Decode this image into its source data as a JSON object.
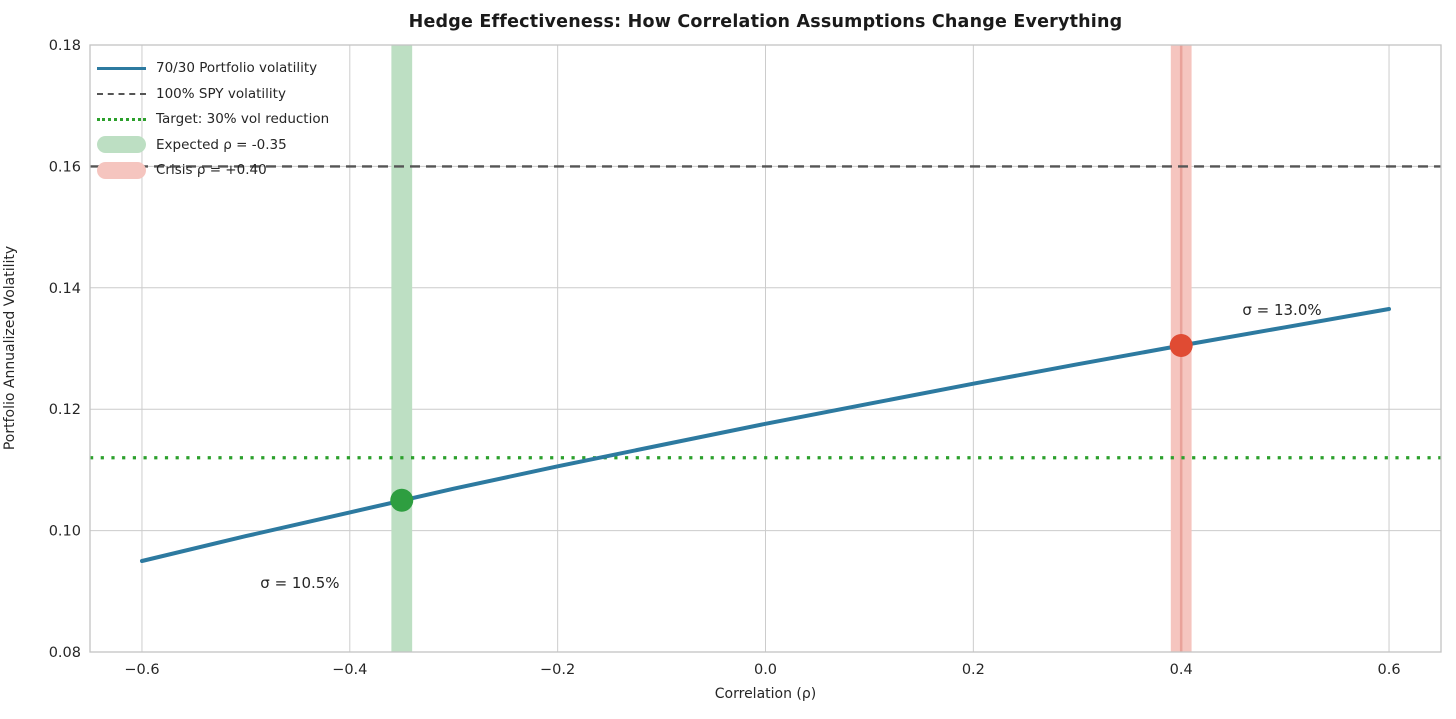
{
  "chart_data": {
    "type": "line",
    "title": "Hedge Effectiveness: How Correlation Assumptions Change Everything",
    "xlabel": "Correlation (ρ)",
    "ylabel": "Portfolio Annualized Volatility",
    "xlim": [
      -0.65,
      0.65
    ],
    "ylim": [
      0.08,
      0.18
    ],
    "grid": true,
    "background": "#ffffff",
    "grid_color": "#cccccc",
    "spine_color": "#c4c4c4",
    "x_ticks": [
      -0.6,
      -0.4,
      -0.2,
      0.0,
      0.2,
      0.4,
      0.6
    ],
    "x_tick_labels": [
      "−0.6",
      "−0.4",
      "−0.2",
      "0.0",
      "0.2",
      "0.4",
      "0.6"
    ],
    "y_ticks": [
      0.08,
      0.1,
      0.12,
      0.14,
      0.16,
      0.18
    ],
    "y_tick_labels": [
      "0.08",
      "0.10",
      "0.12",
      "0.14",
      "0.16",
      "0.18"
    ],
    "series": [
      {
        "name": "70/30 Portfolio volatility",
        "kind": "line",
        "style": "solid",
        "color": "#2d7aa0",
        "x": [
          -0.6,
          -0.5,
          -0.4,
          -0.3,
          -0.2,
          -0.1,
          0.0,
          0.1,
          0.2,
          0.3,
          0.4,
          0.5,
          0.6
        ],
        "y": [
          0.095,
          0.0991,
          0.103,
          0.1069,
          0.1106,
          0.1141,
          0.1176,
          0.1209,
          0.1242,
          0.1274,
          0.1305,
          0.1335,
          0.1365
        ]
      },
      {
        "name": "100% SPY volatility",
        "kind": "hline",
        "style": "dashed",
        "color": "#555555",
        "y": 0.16
      },
      {
        "name": "Target: 30% vol reduction",
        "kind": "hline",
        "style": "dotted",
        "color": "#2ca02c",
        "y": 0.112
      },
      {
        "name": "Expected ρ = -0.35",
        "kind": "vband",
        "color": "#bddfc3",
        "x_center": -0.35,
        "x_range": [
          -0.36,
          -0.34
        ],
        "centerline": null
      },
      {
        "name": "Crisis ρ = +0.40",
        "kind": "vband",
        "color": "#f5c5bf",
        "x_center": 0.4,
        "x_range": [
          0.39,
          0.41
        ],
        "centerline": "#e9a29a"
      }
    ],
    "markers": [
      {
        "x": -0.35,
        "y": 0.105,
        "color": "#2e9e40",
        "label": "Expected scenario point"
      },
      {
        "x": 0.4,
        "y": 0.1305,
        "color": "#e04b33",
        "label": "Crisis scenario point"
      }
    ],
    "annotations": [
      {
        "x": -0.448,
        "y": 0.0914,
        "text": "σ = 10.5%"
      },
      {
        "x": 0.497,
        "y": 0.1363,
        "text": "σ = 13.0%"
      }
    ],
    "legend_position": "upper left",
    "legend": {
      "items": [
        {
          "label": "70/30 Portfolio volatility",
          "swatch": "line",
          "color": "#2d7aa0"
        },
        {
          "label": "100% SPY volatility",
          "swatch": "dashed",
          "color": "#555555"
        },
        {
          "label": "Target: 30% vol reduction",
          "swatch": "dotted",
          "color": "#2ca02c"
        },
        {
          "label": "Expected ρ = -0.35",
          "swatch": "patch",
          "color": "#bddfc3"
        },
        {
          "label": "Crisis ρ = +0.40",
          "swatch": "patch",
          "color": "#f5c5bf"
        }
      ]
    }
  }
}
